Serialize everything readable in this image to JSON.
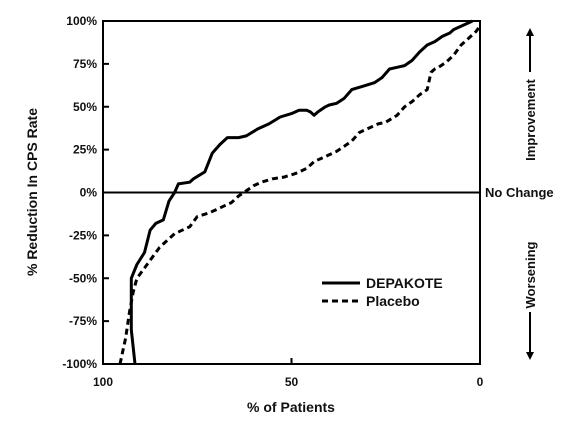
{
  "chart_data": {
    "type": "line",
    "title": "",
    "xlabel": "% of Patients",
    "ylabel": "% Reduction In CPS Rate",
    "xlim": [
      100,
      0
    ],
    "ylim": [
      -100,
      100
    ],
    "xticks": [
      100,
      50,
      0
    ],
    "xtick_labels": [
      "100",
      "50",
      "0"
    ],
    "yticks": [
      100,
      75,
      50,
      25,
      0,
      -25,
      -50,
      -75,
      -100
    ],
    "ytick_labels": [
      "100%",
      "75%",
      "50%",
      "25%",
      "0%",
      "-25%",
      "-50%",
      "-75%",
      "-100%"
    ],
    "grid": false,
    "zero_line": true,
    "legend_position": "lower-right inside plot",
    "annotations": {
      "improvement": "Improvement",
      "no_change": "No Change",
      "worsening": "Worsening"
    },
    "series": [
      {
        "name": "DEPAKOTE",
        "style": "solid",
        "color": "#000000",
        "points": [
          [
            91.5,
            -100
          ],
          [
            92.5,
            -80
          ],
          [
            92.5,
            -50
          ],
          [
            91,
            -42
          ],
          [
            89,
            -35
          ],
          [
            87.5,
            -22
          ],
          [
            86,
            -18
          ],
          [
            84,
            -16
          ],
          [
            82.5,
            -5
          ],
          [
            81,
            0
          ],
          [
            80,
            5
          ],
          [
            77,
            6
          ],
          [
            76,
            8
          ],
          [
            73,
            12
          ],
          [
            71,
            23
          ],
          [
            69,
            28
          ],
          [
            67,
            32
          ],
          [
            64,
            32
          ],
          [
            62,
            33
          ],
          [
            59,
            37
          ],
          [
            56,
            40
          ],
          [
            53,
            44
          ],
          [
            50,
            46
          ],
          [
            48,
            48
          ],
          [
            46,
            48
          ],
          [
            45,
            47
          ],
          [
            44,
            45
          ],
          [
            43,
            47
          ],
          [
            41,
            50
          ],
          [
            40,
            51
          ],
          [
            38,
            52
          ],
          [
            36,
            55
          ],
          [
            34,
            60
          ],
          [
            31,
            62
          ],
          [
            28,
            64
          ],
          [
            26,
            67
          ],
          [
            24,
            72
          ],
          [
            22,
            73
          ],
          [
            20,
            74
          ],
          [
            18,
            77
          ],
          [
            16,
            82
          ],
          [
            14,
            86
          ],
          [
            12,
            88
          ],
          [
            10,
            91
          ],
          [
            8,
            93
          ],
          [
            7,
            95
          ],
          [
            6,
            96
          ],
          [
            3,
            99
          ],
          [
            2,
            100
          ]
        ]
      },
      {
        "name": "Placebo",
        "style": "dashed",
        "color": "#000000",
        "points": [
          [
            95.5,
            -100
          ],
          [
            94,
            -85
          ],
          [
            93,
            -70
          ],
          [
            92,
            -58
          ],
          [
            91,
            -50
          ],
          [
            89,
            -44
          ],
          [
            87,
            -38
          ],
          [
            85,
            -32
          ],
          [
            83,
            -28
          ],
          [
            81,
            -24
          ],
          [
            79,
            -22
          ],
          [
            77,
            -20
          ],
          [
            75,
            -14
          ],
          [
            72,
            -12
          ],
          [
            70,
            -10
          ],
          [
            68,
            -8
          ],
          [
            66,
            -6
          ],
          [
            64,
            -2
          ],
          [
            62,
            1
          ],
          [
            60,
            4
          ],
          [
            58,
            6
          ],
          [
            55,
            8
          ],
          [
            52,
            9
          ],
          [
            49,
            11
          ],
          [
            46,
            14
          ],
          [
            44,
            18
          ],
          [
            40,
            22
          ],
          [
            38,
            24
          ],
          [
            36,
            27
          ],
          [
            34,
            30
          ],
          [
            32,
            35
          ],
          [
            30,
            37
          ],
          [
            27,
            40
          ],
          [
            25,
            41
          ],
          [
            22,
            45
          ],
          [
            20,
            50
          ],
          [
            18,
            53
          ],
          [
            16,
            57
          ],
          [
            14,
            60
          ],
          [
            13,
            70
          ],
          [
            12,
            72
          ],
          [
            11,
            73
          ],
          [
            9,
            76
          ],
          [
            7,
            80
          ],
          [
            5,
            86
          ],
          [
            3,
            90
          ],
          [
            1,
            94
          ],
          [
            0,
            97
          ]
        ]
      }
    ]
  }
}
